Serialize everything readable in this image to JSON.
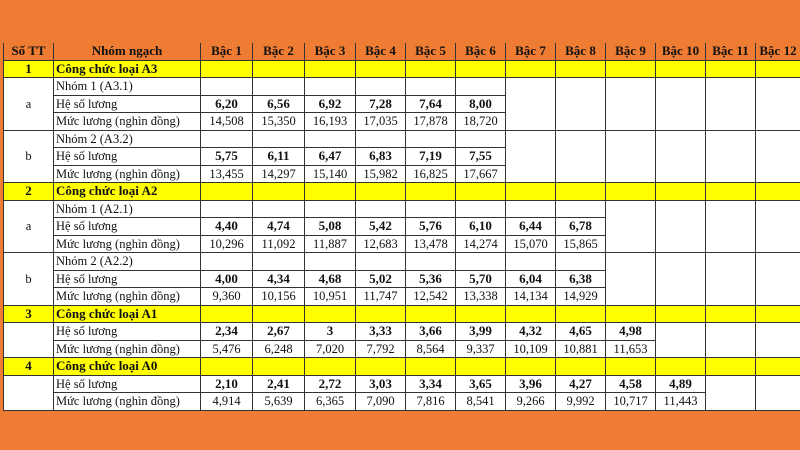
{
  "colors": {
    "background": "#ee7d33",
    "header_bg": "#ee7d33",
    "category_bg": "#ffff00"
  },
  "table": {
    "headers": [
      "Số TT",
      "Nhóm ngạch",
      "Bậc 1",
      "Bậc 2",
      "Bậc 3",
      "Bậc 4",
      "Bậc 5",
      "Bậc 6",
      "Bậc 7",
      "Bậc 8",
      "Bậc 9",
      "Bậc 10",
      "Bậc 11",
      "Bậc 12"
    ],
    "row_labels": {
      "coef": "Hệ số lương",
      "salary": "Mức lương (nghìn đồng)"
    },
    "categories": [
      {
        "stt": "1",
        "name": "Công chức loại A3",
        "groups": [
          {
            "stt": "a",
            "name": "Nhóm 1 (A3.1)",
            "coef": [
              "6,20",
              "6,56",
              "6,92",
              "7,28",
              "7,64",
              "8,00"
            ],
            "salary": [
              "14,508",
              "15,350",
              "16,193",
              "17,035",
              "17,878",
              "18,720"
            ]
          },
          {
            "stt": "b",
            "name": "Nhóm 2 (A3.2)",
            "coef": [
              "5,75",
              "6,11",
              "6,47",
              "6,83",
              "7,19",
              "7,55"
            ],
            "salary": [
              "13,455",
              "14,297",
              "15,140",
              "15,982",
              "16,825",
              "17,667"
            ]
          }
        ]
      },
      {
        "stt": "2",
        "name": "Công chức loại A2",
        "groups": [
          {
            "stt": "a",
            "name": "Nhóm 1 (A2.1)",
            "coef": [
              "4,40",
              "4,74",
              "5,08",
              "5,42",
              "5,76",
              "6,10",
              "6,44",
              "6,78"
            ],
            "salary": [
              "10,296",
              "11,092",
              "11,887",
              "12,683",
              "13,478",
              "14,274",
              "15,070",
              "15,865"
            ]
          },
          {
            "stt": "b",
            "name": "Nhóm 2 (A2.2)",
            "coef": [
              "4,00",
              "4,34",
              "4,68",
              "5,02",
              "5,36",
              "5,70",
              "6,04",
              "6,38"
            ],
            "salary": [
              "9,360",
              "10,156",
              "10,951",
              "11,747",
              "12,542",
              "13,338",
              "14,134",
              "14,929"
            ]
          }
        ]
      },
      {
        "stt": "3",
        "name": "Công chức loại A1",
        "groups": [
          {
            "stt": "",
            "name": "",
            "coef": [
              "2,34",
              "2,67",
              "3",
              "3,33",
              "3,66",
              "3,99",
              "4,32",
              "4,65",
              "4,98"
            ],
            "salary": [
              "5,476",
              "6,248",
              "7,020",
              "7,792",
              "8,564",
              "9,337",
              "10,109",
              "10,881",
              "11,653"
            ]
          }
        ]
      },
      {
        "stt": "4",
        "name": "Công chức loại A0",
        "groups": [
          {
            "stt": "",
            "name": "",
            "coef": [
              "2,10",
              "2,41",
              "2,72",
              "3,03",
              "3,34",
              "3,65",
              "3,96",
              "4,27",
              "4,58",
              "4,89"
            ],
            "salary": [
              "4,914",
              "5,639",
              "6,365",
              "7,090",
              "7,816",
              "8,541",
              "9,266",
              "9,992",
              "10,717",
              "11,443"
            ]
          }
        ]
      }
    ]
  }
}
